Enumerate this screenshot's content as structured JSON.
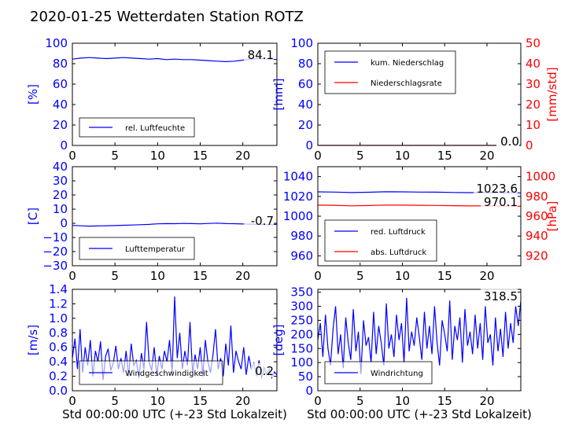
{
  "title": "2020-01-25 Wetterdaten Station ROTZ",
  "colors": {
    "primary": "#0000ff",
    "secondary": "#ff0000",
    "legend_border": "#000000"
  },
  "chart_data": [
    {
      "id": "humidity",
      "type": "line",
      "grid": false,
      "legend_placement": "lower-left",
      "xlim": [
        0,
        24
      ],
      "ylim": [
        0,
        100
      ],
      "x_ticks": [
        "0",
        "5",
        "10",
        "15",
        "20"
      ],
      "y_ticks": [
        "0",
        "20",
        "40",
        "60",
        "80",
        "100"
      ],
      "ylabel": "[%]",
      "xlabel": "",
      "value_label": "84.1",
      "series": [
        {
          "name": "rel. Luftfeuchte",
          "color": "#0000ff",
          "x": [
            0,
            1,
            2,
            3,
            4,
            5,
            6,
            7,
            8,
            9,
            10,
            11,
            12,
            13,
            14,
            15,
            16,
            17,
            18,
            19,
            20,
            21,
            22,
            23,
            24
          ],
          "y": [
            84.5,
            85.5,
            86.0,
            85.5,
            85.0,
            85.5,
            86.0,
            85.5,
            85.0,
            84.5,
            85.0,
            84.0,
            84.5,
            84.0,
            84.0,
            83.5,
            83.0,
            82.5,
            82.0,
            82.5,
            83.5,
            84.5,
            85.0,
            84.5,
            84.1
          ]
        }
      ]
    },
    {
      "id": "precipitation",
      "type": "line",
      "grid": false,
      "legend_placement": "upper-left",
      "xlim": [
        0,
        24
      ],
      "ylim": [
        0,
        100
      ],
      "ylim_right": [
        0,
        50
      ],
      "x_ticks": [
        "0",
        "5",
        "10",
        "15",
        "20"
      ],
      "y_ticks": [
        "0",
        "20",
        "40",
        "60",
        "80",
        "100"
      ],
      "y_ticks_right": [
        "0",
        "10",
        "20",
        "30",
        "40",
        "50"
      ],
      "ylabel": "[mm]",
      "ylabel_right": "[mm/std]",
      "xlabel": "",
      "value_labels": [
        "0.0",
        "0.0"
      ],
      "series": [
        {
          "name": "kum. Niederschlag",
          "color": "#0000ff",
          "axis": "left",
          "x": [
            0,
            24
          ],
          "y": [
            0,
            0
          ]
        },
        {
          "name": "Niederschlagsrate",
          "color": "#ff0000",
          "axis": "right",
          "x": [
            0,
            24
          ],
          "y": [
            0,
            0
          ]
        }
      ]
    },
    {
      "id": "temperature",
      "type": "line",
      "grid": false,
      "legend_placement": "lower-left",
      "xlim": [
        0,
        24
      ],
      "ylim": [
        -30,
        40
      ],
      "x_ticks": [
        "0",
        "5",
        "10",
        "15",
        "20"
      ],
      "y_ticks": [
        "−30",
        "−20",
        "−10",
        "0",
        "10",
        "20",
        "30",
        "40"
      ],
      "ylabel": "[C]",
      "xlabel": "",
      "value_label": "-0.7",
      "series": [
        {
          "name": "Lufttemperatur",
          "color": "#0000ff",
          "x": [
            0,
            1,
            2,
            3,
            4,
            5,
            6,
            7,
            8,
            9,
            10,
            11,
            12,
            13,
            14,
            15,
            16,
            17,
            18,
            19,
            20,
            21,
            22,
            23,
            24
          ],
          "y": [
            -1.5,
            -1.8,
            -2.0,
            -1.9,
            -1.7,
            -1.6,
            -1.4,
            -1.2,
            -1.0,
            -0.8,
            -0.4,
            -0.2,
            -0.3,
            -0.1,
            -0.2,
            -0.4,
            -0.1,
            0.1,
            -0.2,
            -0.3,
            -0.5,
            -0.6,
            -0.8,
            -1.0,
            -0.7
          ]
        }
      ]
    },
    {
      "id": "pressure",
      "type": "line",
      "grid": false,
      "legend_placement": "lower-left",
      "xlim": [
        0,
        24
      ],
      "ylim": [
        950,
        1050
      ],
      "ylim_right": [
        910,
        1010
      ],
      "x_ticks": [
        "0",
        "5",
        "10",
        "15",
        "20"
      ],
      "y_ticks": [
        "960",
        "980",
        "1000",
        "1020",
        "1040"
      ],
      "y_ticks_right": [
        "920",
        "940",
        "960",
        "980",
        "1000"
      ],
      "ylabel": "",
      "ylabel_right": "[hPa]",
      "xlabel": "",
      "value_labels": [
        "1023.6",
        "970.1"
      ],
      "series": [
        {
          "name": "red. Luftdruck",
          "color": "#0000ff",
          "axis": "left",
          "x": [
            0,
            2,
            4,
            6,
            8,
            10,
            12,
            14,
            16,
            18,
            20,
            22,
            24
          ],
          "y": [
            1024.6,
            1024.4,
            1023.9,
            1024.2,
            1024.7,
            1024.6,
            1024.4,
            1024.3,
            1024.0,
            1023.8,
            1023.9,
            1023.7,
            1023.6
          ]
        },
        {
          "name": "abs. Luftdruck",
          "color": "#ff0000",
          "axis": "right",
          "x": [
            0,
            2,
            4,
            6,
            8,
            10,
            12,
            14,
            16,
            18,
            20,
            22,
            24
          ],
          "y": [
            971.2,
            971.0,
            970.5,
            970.8,
            971.3,
            971.2,
            971.0,
            970.9,
            970.6,
            970.4,
            970.5,
            970.3,
            970.1
          ]
        }
      ]
    },
    {
      "id": "windspeed",
      "type": "line",
      "grid": false,
      "legend_placement": "lower-left",
      "xlim": [
        0,
        24
      ],
      "ylim": [
        0,
        1.4
      ],
      "x_ticks": [
        "0",
        "5",
        "10",
        "15",
        "20"
      ],
      "y_ticks": [
        "0.0",
        "0.2",
        "0.4",
        "0.6",
        "0.8",
        "1.0",
        "1.2",
        "1.4"
      ],
      "ylabel": "[m/s]",
      "xlabel": "Std 00:00:00 UTC (+-23 Std Lokalzeit)",
      "value_label": "0.2",
      "series": [
        {
          "name": "Windgeschwindigkeit",
          "color": "#0000ff",
          "x": [
            0,
            0.3,
            0.6,
            0.9,
            1.2,
            1.5,
            1.8,
            2.1,
            2.4,
            2.7,
            3.0,
            3.3,
            3.6,
            3.9,
            4.2,
            4.5,
            4.8,
            5.1,
            5.4,
            5.7,
            6.0,
            6.3,
            6.6,
            6.9,
            7.2,
            7.5,
            7.8,
            8.1,
            8.4,
            8.7,
            9.0,
            9.3,
            9.6,
            9.9,
            10.2,
            10.5,
            10.8,
            11.1,
            11.4,
            11.7,
            12.0,
            12.3,
            12.6,
            12.9,
            13.2,
            13.5,
            13.8,
            14.1,
            14.4,
            14.7,
            15.0,
            15.3,
            15.6,
            15.9,
            16.2,
            16.5,
            16.8,
            17.1,
            17.4,
            17.7,
            18.0,
            18.3,
            18.6,
            18.9,
            19.2,
            19.5,
            19.8,
            20.1,
            20.4,
            20.7,
            21.0,
            21.3,
            21.6,
            21.9,
            22.2,
            22.5,
            22.8,
            23.1,
            23.4,
            23.7,
            24.0
          ],
          "y": [
            0.45,
            0.72,
            0.3,
            0.85,
            0.25,
            0.6,
            0.35,
            0.7,
            0.2,
            0.55,
            0.4,
            0.68,
            0.15,
            0.48,
            0.58,
            0.28,
            0.38,
            0.62,
            0.3,
            0.45,
            0.25,
            0.55,
            0.2,
            0.65,
            0.35,
            0.42,
            0.18,
            0.52,
            0.3,
            0.95,
            0.4,
            0.28,
            0.6,
            0.22,
            0.48,
            0.3,
            0.55,
            0.4,
            0.7,
            0.25,
            1.3,
            0.45,
            0.8,
            0.3,
            0.55,
            0.35,
            0.95,
            0.25,
            0.5,
            0.3,
            0.6,
            0.2,
            0.7,
            0.4,
            0.25,
            0.5,
            0.85,
            0.3,
            0.45,
            0.2,
            0.65,
            0.35,
            0.9,
            0.25,
            0.55,
            0.4,
            0.3,
            0.6,
            0.22,
            0.48,
            0.3,
            0.38,
            0.2,
            0.42,
            0.18,
            0.32,
            0.22,
            0.3,
            0.18,
            0.26,
            0.22
          ]
        }
      ]
    },
    {
      "id": "winddirection",
      "type": "line",
      "grid": false,
      "legend_placement": "lower-left",
      "xlim": [
        0,
        24
      ],
      "ylim": [
        0,
        360
      ],
      "x_ticks": [
        "0",
        "5",
        "10",
        "15",
        "20"
      ],
      "y_ticks": [
        "0",
        "50",
        "100",
        "150",
        "200",
        "250",
        "300",
        "350"
      ],
      "ylabel": "[deg]",
      "xlabel": "Std 00:00:00 UTC (+-23 Std Lokalzeit)",
      "value_label": "318.5",
      "series": [
        {
          "name": "Windrichtung",
          "color": "#0000ff",
          "x": [
            0,
            0.3,
            0.6,
            0.9,
            1.2,
            1.5,
            1.8,
            2.1,
            2.4,
            2.7,
            3.0,
            3.3,
            3.6,
            3.9,
            4.2,
            4.5,
            4.8,
            5.1,
            5.4,
            5.7,
            6.0,
            6.3,
            6.6,
            6.9,
            7.2,
            7.5,
            7.8,
            8.1,
            8.4,
            8.7,
            9.0,
            9.3,
            9.6,
            9.9,
            10.2,
            10.5,
            10.8,
            11.1,
            11.4,
            11.7,
            12.0,
            12.3,
            12.6,
            12.9,
            13.2,
            13.5,
            13.8,
            14.1,
            14.4,
            14.7,
            15.0,
            15.3,
            15.6,
            15.9,
            16.2,
            16.5,
            16.8,
            17.1,
            17.4,
            17.7,
            18.0,
            18.3,
            18.6,
            18.9,
            19.2,
            19.5,
            19.8,
            20.1,
            20.4,
            20.7,
            21.0,
            21.3,
            21.6,
            21.9,
            22.2,
            22.5,
            22.8,
            23.1,
            23.4,
            23.7,
            24.0
          ],
          "y": [
            180,
            240,
            120,
            270,
            150,
            90,
            220,
            300,
            130,
            200,
            80,
            260,
            170,
            110,
            290,
            140,
            210,
            60,
            250,
            160,
            190,
            100,
            280,
            130,
            230,
            170,
            90,
            310,
            150,
            200,
            120,
            270,
            180,
            240,
            100,
            330,
            140,
            210,
            160,
            260,
            190,
            110,
            280,
            150,
            230,
            130,
            300,
            170,
            90,
            250,
            200,
            140,
            320,
            110,
            230,
            180,
            260,
            100,
            290,
            160,
            210,
            130,
            270,
            150,
            240,
            110,
            300,
            170,
            200,
            90,
            260,
            140,
            220,
            120,
            280,
            150,
            240,
            170,
            300,
            230,
            318.5
          ]
        }
      ]
    }
  ]
}
